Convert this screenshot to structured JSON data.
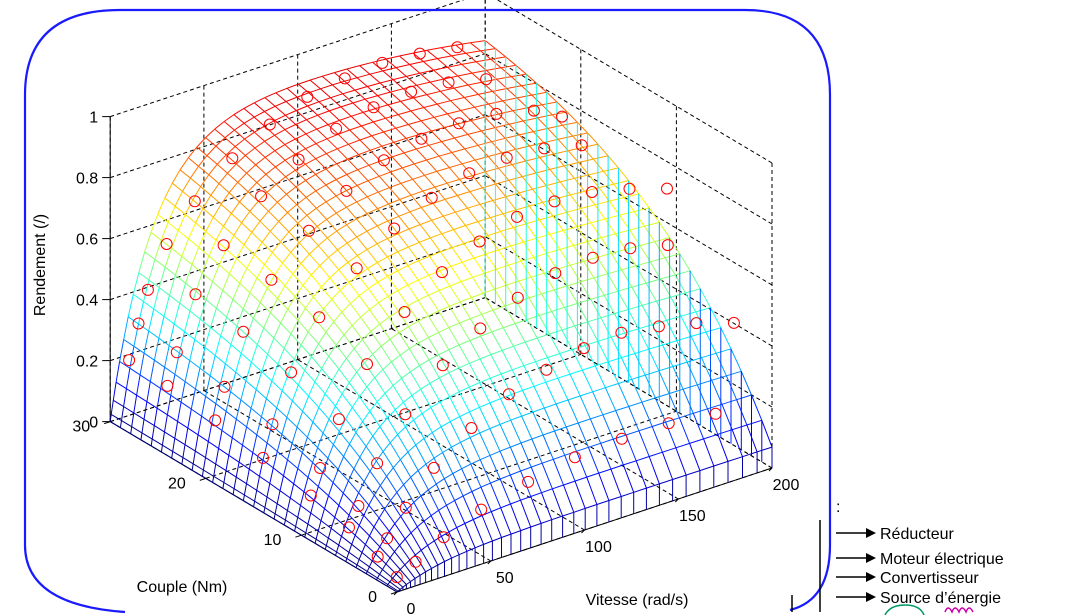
{
  "chart_data": {
    "type": "surface3d",
    "title": "",
    "xlabel": "Vitesse (rad/s)",
    "ylabel": "Couple (Nm)",
    "zlabel": "Rendement (/)",
    "xlim": [
      0,
      200
    ],
    "ylim": [
      0,
      30
    ],
    "zlim": [
      0,
      1
    ],
    "x_ticks": [
      "0",
      "50",
      "100",
      "150",
      "200"
    ],
    "y_ticks": [
      "0",
      "10",
      "20",
      "30"
    ],
    "z_ticks": [
      "0",
      "0.2",
      "0.4",
      "0.6",
      "0.8",
      "1"
    ],
    "grid": true,
    "surface_colormap": "jet",
    "measured_points_color": "#ff0000",
    "surface_model": {
      "x_range": [
        0,
        200
      ],
      "y_range": [
        0,
        30
      ],
      "x_steps": 40,
      "y_steps": 28,
      "efficiency_max": 0.93
    },
    "measured_points": [
      [
        5,
        29,
        0.21
      ],
      [
        10,
        29,
        0.32
      ],
      [
        15,
        29,
        0.42
      ],
      [
        25,
        29,
        0.55
      ],
      [
        40,
        29,
        0.66
      ],
      [
        60,
        29,
        0.76
      ],
      [
        80,
        29,
        0.83
      ],
      [
        100,
        29,
        0.88
      ],
      [
        120,
        29,
        0.9
      ],
      [
        140,
        29,
        0.91
      ],
      [
        160,
        29,
        0.9
      ],
      [
        180,
        29,
        0.88
      ],
      [
        5,
        25,
        0.2
      ],
      [
        10,
        25,
        0.3
      ],
      [
        20,
        25,
        0.47
      ],
      [
        35,
        25,
        0.6
      ],
      [
        55,
        25,
        0.72
      ],
      [
        75,
        25,
        0.8
      ],
      [
        95,
        25,
        0.86
      ],
      [
        115,
        25,
        0.89
      ],
      [
        135,
        25,
        0.9
      ],
      [
        155,
        25,
        0.89
      ],
      [
        175,
        25,
        0.86
      ],
      [
        5,
        20,
        0.18
      ],
      [
        10,
        20,
        0.28
      ],
      [
        20,
        20,
        0.44
      ],
      [
        35,
        20,
        0.58
      ],
      [
        55,
        20,
        0.7
      ],
      [
        75,
        20,
        0.79
      ],
      [
        95,
        20,
        0.85
      ],
      [
        115,
        20,
        0.88
      ],
      [
        135,
        20,
        0.89
      ],
      [
        155,
        20,
        0.88
      ],
      [
        175,
        20,
        0.85
      ],
      [
        190,
        20,
        0.8
      ],
      [
        5,
        15,
        0.15
      ],
      [
        10,
        15,
        0.25
      ],
      [
        20,
        15,
        0.4
      ],
      [
        35,
        15,
        0.55
      ],
      [
        55,
        15,
        0.67
      ],
      [
        75,
        15,
        0.76
      ],
      [
        95,
        15,
        0.82
      ],
      [
        115,
        15,
        0.86
      ],
      [
        135,
        15,
        0.87
      ],
      [
        155,
        15,
        0.86
      ],
      [
        175,
        15,
        0.83
      ],
      [
        5,
        10,
        0.12
      ],
      [
        10,
        10,
        0.2
      ],
      [
        20,
        10,
        0.34
      ],
      [
        35,
        10,
        0.49
      ],
      [
        55,
        10,
        0.62
      ],
      [
        75,
        10,
        0.71
      ],
      [
        95,
        10,
        0.77
      ],
      [
        115,
        10,
        0.81
      ],
      [
        135,
        10,
        0.82
      ],
      [
        155,
        10,
        0.81
      ],
      [
        175,
        10,
        0.78
      ],
      [
        195,
        10,
        0.74
      ],
      [
        5,
        6,
        0.09
      ],
      [
        10,
        6,
        0.15
      ],
      [
        20,
        6,
        0.27
      ],
      [
        35,
        6,
        0.4
      ],
      [
        55,
        6,
        0.52
      ],
      [
        75,
        6,
        0.6
      ],
      [
        95,
        6,
        0.66
      ],
      [
        115,
        6,
        0.7
      ],
      [
        135,
        6,
        0.71
      ],
      [
        155,
        6,
        0.7
      ],
      [
        175,
        6,
        0.67
      ],
      [
        5,
        3,
        0.05
      ],
      [
        10,
        3,
        0.1
      ],
      [
        20,
        3,
        0.18
      ],
      [
        35,
        3,
        0.28
      ],
      [
        55,
        3,
        0.37
      ],
      [
        75,
        3,
        0.44
      ],
      [
        95,
        3,
        0.48
      ],
      [
        115,
        3,
        0.51
      ],
      [
        135,
        3,
        0.52
      ],
      [
        155,
        3,
        0.5
      ],
      [
        175,
        3,
        0.47
      ],
      [
        195,
        3,
        0.43
      ],
      [
        5,
        1,
        0.02
      ],
      [
        15,
        1,
        0.05
      ],
      [
        30,
        1,
        0.1
      ],
      [
        50,
        1,
        0.15
      ],
      [
        75,
        1,
        0.19
      ],
      [
        100,
        1,
        0.22
      ],
      [
        125,
        1,
        0.23
      ],
      [
        150,
        1,
        0.23
      ],
      [
        175,
        1,
        0.21
      ]
    ]
  },
  "legend": {
    "items": [
      "Réducteur",
      "Moteur électrique",
      "Convertisseur",
      "Source d’énergie"
    ]
  }
}
